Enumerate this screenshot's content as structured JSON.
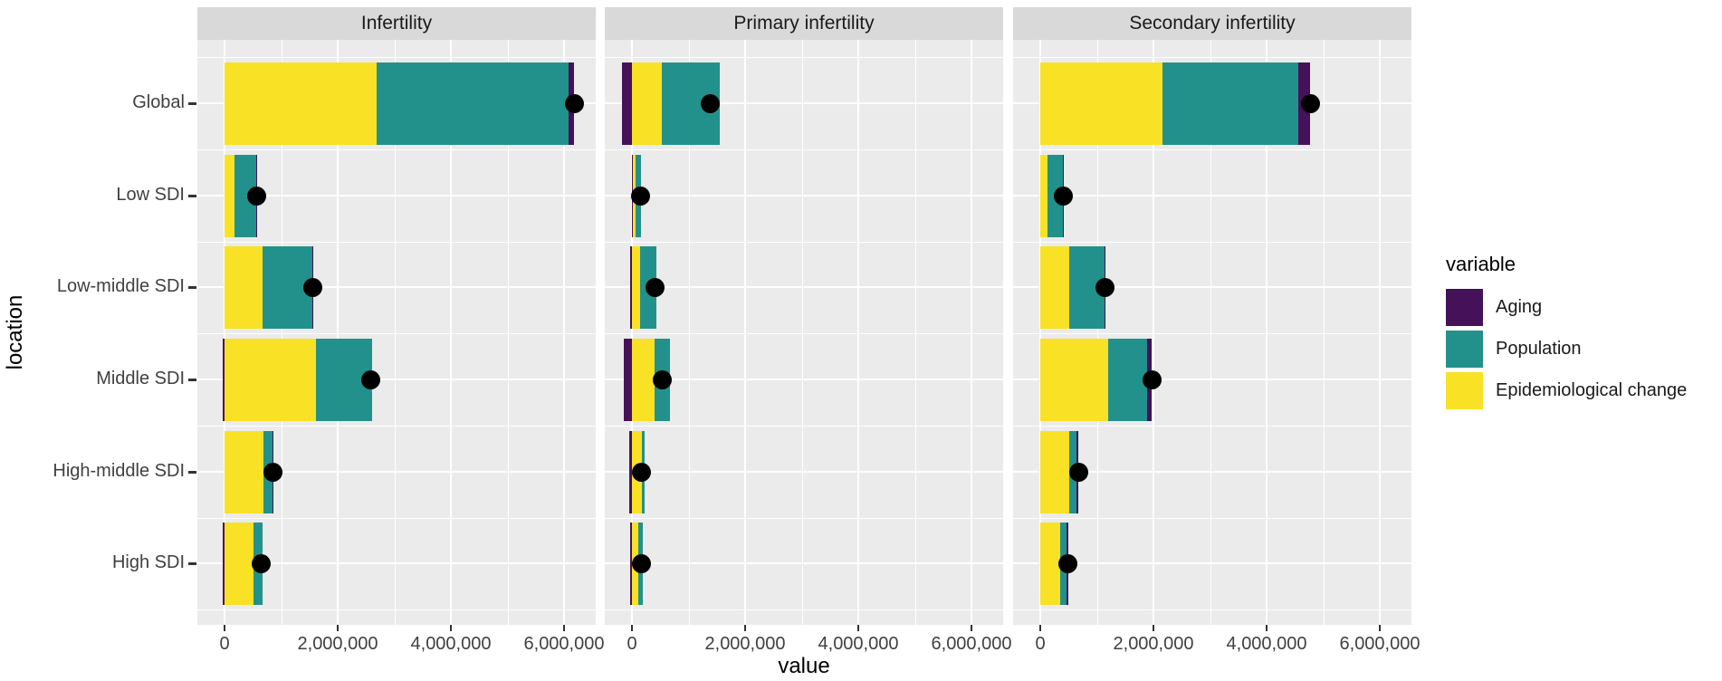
{
  "figure": {
    "y_axis_title": "location",
    "x_axis_title": "value",
    "legend": {
      "title": "variable",
      "items": [
        {
          "label": "Aging",
          "color": "#45125A"
        },
        {
          "label": "Population",
          "color": "#23918B"
        },
        {
          "label": "Epidemiological change",
          "color": "#F9E125"
        }
      ]
    }
  },
  "chart_data": {
    "type": "bar",
    "subtype": "horizontal-stacked-faceted",
    "facet_titles": [
      "Infertility",
      "Primary infertility",
      "Secondary infertility"
    ],
    "categories": [
      "Global",
      "Low SDI",
      "Low-middle SDI",
      "Middle SDI",
      "High-middle SDI",
      "High SDI"
    ],
    "series_order": [
      "Epidemiological change",
      "Population",
      "Aging"
    ],
    "x_ticks": [
      0,
      2000000,
      4000000,
      6000000
    ],
    "x_tick_labels": [
      "0",
      "2,000,000",
      "4,000,000",
      "6,000,000"
    ],
    "x_minor_ticks": [
      1000000,
      3000000,
      5000000
    ],
    "xlim": [
      -480000,
      6560000
    ],
    "grid": true,
    "legend_position": "right",
    "colors": {
      "Aging": "#45125A",
      "Population": "#23918B",
      "Epidemiological change": "#F9E125",
      "dot": "#000000",
      "panel_background": "#EBEBEB",
      "strip_background": "#D9D9D9",
      "grid_color": "#FFFFFF"
    },
    "facets": [
      {
        "title": "Infertility",
        "series": {
          "Epidemiological change": [
            2690000,
            180000,
            670000,
            1620000,
            690000,
            510000
          ],
          "Population": [
            3390000,
            380000,
            880000,
            990000,
            160000,
            160000
          ],
          "Aging": [
            96000,
            10000,
            15000,
            -30000,
            5000,
            -25000
          ]
        },
        "dot_values": [
          6176000,
          570000,
          1565000,
          2580000,
          855000,
          645000
        ]
      },
      {
        "title": "Primary infertility",
        "series": {
          "Epidemiological change": [
            528000,
            64000,
            144000,
            400000,
            170000,
            112000
          ],
          "Population": [
            1024000,
            96000,
            290000,
            272000,
            50000,
            80000
          ],
          "Aging": [
            -176000,
            -5000,
            -30000,
            -144000,
            -50000,
            -32000
          ]
        },
        "dot_values": [
          1376000,
          155000,
          404000,
          528000,
          170000,
          160000
        ]
      },
      {
        "title": "Secondary infertility",
        "series": {
          "Epidemiological change": [
            2160000,
            128000,
            510000,
            1200000,
            510000,
            350000
          ],
          "Population": [
            2400000,
            272000,
            620000,
            690000,
            130000,
            110000
          ],
          "Aging": [
            208000,
            10000,
            15000,
            80000,
            35000,
            30000
          ]
        },
        "dot_values": [
          4768000,
          410000,
          1145000,
          1970000,
          675000,
          490000
        ]
      }
    ]
  }
}
